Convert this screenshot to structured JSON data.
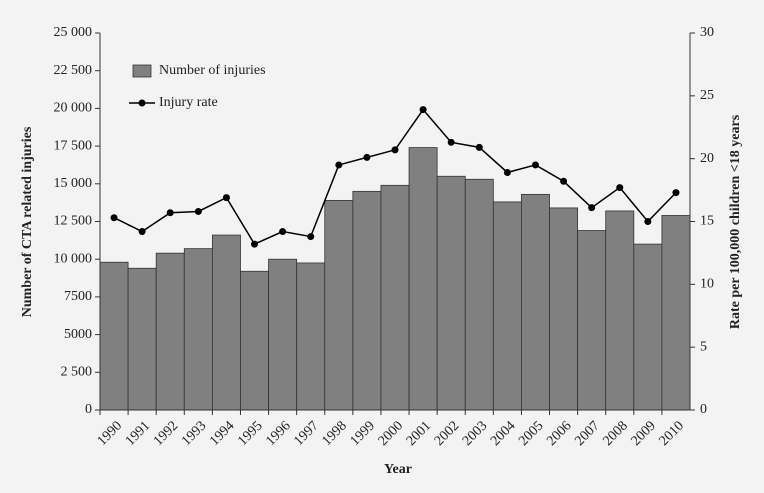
{
  "chart_data": {
    "type": "bar_line",
    "x_label": "Year",
    "y_label": "Number of CTA related injuries",
    "y2_label": "Rate per 100,000 children <18 years",
    "categories": [
      "1990",
      "1991",
      "1992",
      "1993",
      "1994",
      "1995",
      "1996",
      "1997",
      "1998",
      "1999",
      "2000",
      "2001",
      "2002",
      "2003",
      "2004",
      "2005",
      "2006",
      "2007",
      "2008",
      "2009",
      "2010"
    ],
    "series": [
      {
        "name": "Number of injuries",
        "type": "bar",
        "color": "#808080",
        "values": [
          9800,
          9400,
          10400,
          10700,
          11600,
          9200,
          10000,
          9750,
          13900,
          14500,
          14900,
          17400,
          15500,
          15300,
          13800,
          14300,
          13400,
          11900,
          13200,
          11000,
          12900
        ]
      },
      {
        "name": "Injury rate",
        "type": "line",
        "color": "#000000",
        "axis": "y2",
        "values": [
          15.3,
          14.2,
          15.7,
          15.8,
          16.9,
          13.2,
          14.2,
          13.8,
          19.5,
          20.1,
          20.7,
          23.9,
          21.3,
          20.9,
          18.9,
          19.5,
          18.2,
          16.1,
          17.7,
          15.0,
          17.3
        ]
      }
    ],
    "ylim": [
      0,
      25000
    ],
    "yticks": [
      0,
      {
        "value": 2500,
        "label": "2 500"
      },
      5000,
      7500,
      {
        "value": 10000,
        "label": "10 000"
      },
      {
        "value": 12500,
        "label": "12 500"
      },
      {
        "value": 15000,
        "label": "15 000"
      },
      {
        "value": 17500,
        "label": "17 500"
      },
      {
        "value": 20000,
        "label": "20 000"
      },
      {
        "value": 22500,
        "label": "22 500"
      },
      {
        "value": 25000,
        "label": "25 000"
      }
    ],
    "y2lim": [
      0,
      30
    ],
    "y2ticks": [
      0,
      5,
      10,
      15,
      20,
      25,
      30
    ],
    "legend": "upper left"
  }
}
